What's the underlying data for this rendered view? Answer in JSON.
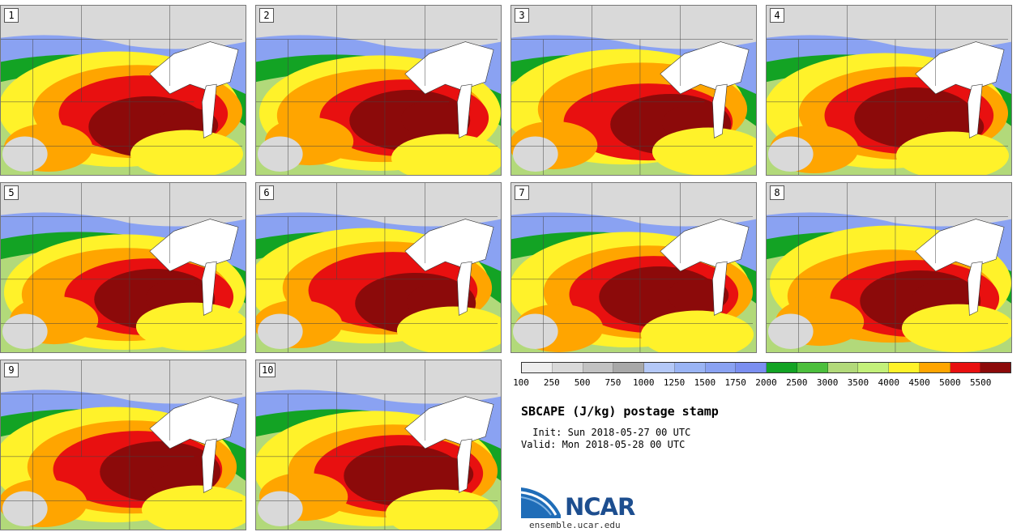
{
  "title": "SBCAPE (J/kg) postage stamp",
  "init": " Init: Sun 2018-05-27 00 UTC",
  "valid": "Valid: Mon 2018-05-28 00 UTC",
  "site": "ensemble.ucar.edu",
  "logo_text": "NCAR",
  "panels": [
    "1",
    "2",
    "3",
    "4",
    "5",
    "6",
    "7",
    "8",
    "9",
    "10"
  ],
  "colorbar": {
    "ticks": [
      "100",
      "250",
      "500",
      "750",
      "1000",
      "1250",
      "1500",
      "1750",
      "2000",
      "2500",
      "3000",
      "3500",
      "4000",
      "4500",
      "5000",
      "5500"
    ],
    "colors": [
      "#ededed",
      "#d9d9d9",
      "#c2c2c2",
      "#a8a8a8",
      "#b4c8f7",
      "#9ab4f4",
      "#8aa2f2",
      "#7b8ff0",
      "#13a324",
      "#4cbf3d",
      "#b2d97a",
      "#c3f07a",
      "#fff22a",
      "#ffa500",
      "#e81010",
      "#8c0a0a"
    ]
  }
}
